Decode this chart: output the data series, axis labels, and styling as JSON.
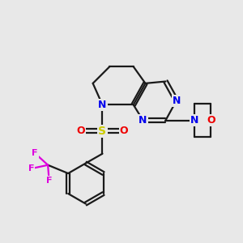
{
  "bg_color": "#e8e8e8",
  "bond_color": "#1a1a1a",
  "bond_width": 1.6,
  "atom_colors": {
    "N": "#0000ee",
    "O": "#ee0000",
    "S": "#cccc00",
    "F": "#dd00dd",
    "C": "#1a1a1a"
  },
  "font_size_large": 10,
  "font_size_med": 9,
  "font_size_small": 8
}
